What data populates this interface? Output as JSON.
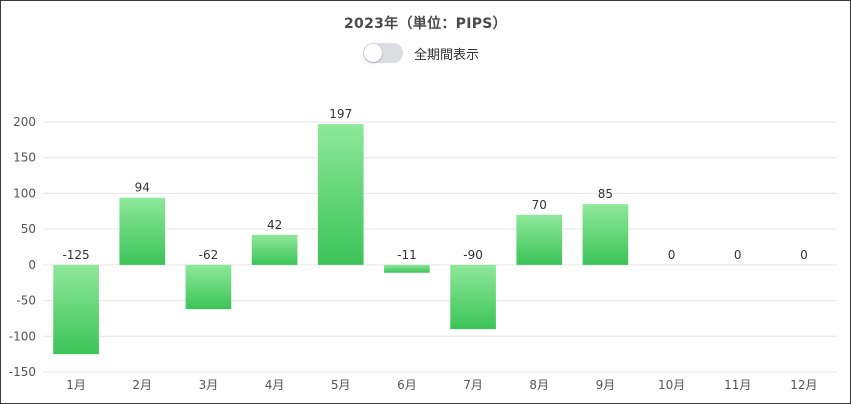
{
  "header": {
    "title": "2023年（単位：PIPS）",
    "toggle_label": "全期間表示",
    "toggle_on": false
  },
  "chart_data": {
    "type": "bar",
    "title": "2023年（単位：PIPS）",
    "categories": [
      "1月",
      "2月",
      "3月",
      "4月",
      "5月",
      "6月",
      "7月",
      "8月",
      "9月",
      "10月",
      "11月",
      "12月"
    ],
    "values": [
      -125,
      94,
      -62,
      42,
      197,
      -11,
      -90,
      70,
      85,
      0,
      0,
      0
    ],
    "ylim": [
      -150,
      200
    ],
    "yticks": [
      200,
      150,
      100,
      50,
      0,
      -50,
      -100,
      -150
    ],
    "grid": true,
    "legend": "none",
    "colors": {
      "bar_top": "#8ee89a",
      "bar_bottom": "#3cc458",
      "grid": "#e6e6e6"
    }
  }
}
